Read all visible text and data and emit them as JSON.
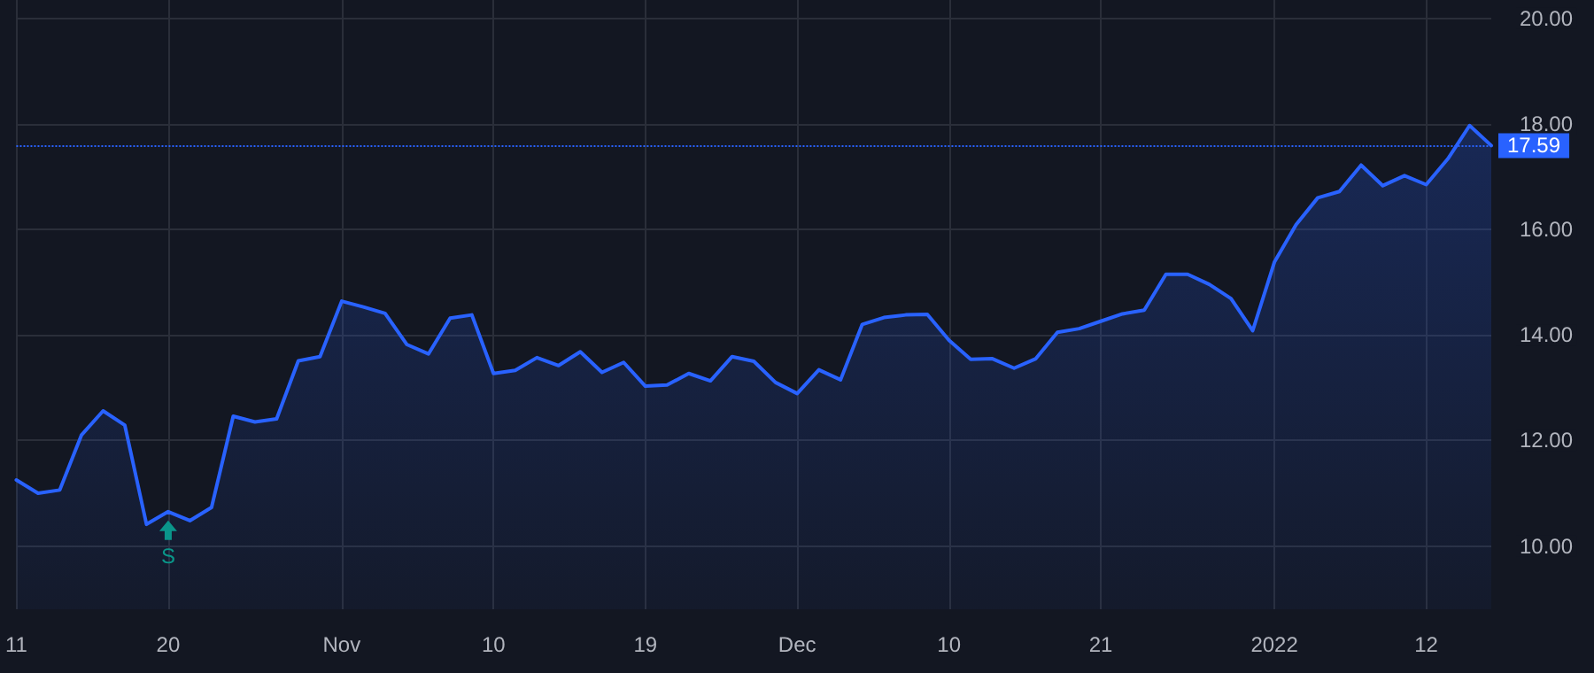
{
  "chart_data": {
    "type": "area",
    "categories": [
      "11",
      null,
      null,
      null,
      null,
      null,
      null,
      "20",
      null,
      null,
      null,
      null,
      null,
      null,
      null,
      "Nov",
      null,
      null,
      null,
      null,
      null,
      null,
      "10",
      null,
      null,
      null,
      null,
      null,
      null,
      "19",
      null,
      null,
      null,
      null,
      null,
      null,
      "Dec",
      null,
      null,
      null,
      null,
      null,
      null,
      "10",
      null,
      null,
      null,
      null,
      null,
      null,
      "21",
      null,
      null,
      null,
      null,
      null,
      null,
      null,
      "2022",
      null,
      null,
      null,
      null,
      null,
      null,
      "12",
      null,
      null,
      null
    ],
    "series": [
      {
        "color": "#2962ff",
        "values": [
          11.25,
          11.0,
          11.06,
          12.1,
          12.56,
          12.29,
          10.41,
          10.65,
          10.48,
          10.73,
          12.46,
          12.35,
          12.41,
          13.51,
          13.59,
          14.64,
          14.53,
          14.41,
          13.82,
          13.64,
          14.32,
          14.38,
          13.27,
          13.33,
          13.57,
          13.42,
          13.68,
          13.29,
          13.48,
          13.03,
          13.05,
          13.27,
          13.13,
          13.59,
          13.5,
          13.1,
          12.89,
          13.34,
          13.15,
          14.2,
          14.33,
          14.38,
          14.39,
          13.9,
          13.54,
          13.55,
          13.37,
          13.55,
          14.05,
          14.12,
          14.26,
          14.4,
          14.47,
          15.15,
          15.15,
          14.96,
          14.69,
          14.08,
          15.38,
          16.09,
          16.6,
          16.72,
          17.22,
          16.83,
          17.02,
          16.85,
          17.34,
          17.97,
          17.59
        ]
      }
    ],
    "ylim": [
      8.8,
      20.35
    ],
    "yticks": [
      {
        "value": 10,
        "label": "10.00"
      },
      {
        "value": 12,
        "label": "12.00"
      },
      {
        "value": 14,
        "label": "14.00"
      },
      {
        "value": 16,
        "label": "16.00"
      },
      {
        "value": 18,
        "label": "18.00"
      },
      {
        "value": 20,
        "label": "20.00"
      }
    ],
    "ref_lines": [
      {
        "axis": "y",
        "value": 17.59,
        "label": "17.59",
        "color": "#2962ff",
        "line_style": "dotted"
      }
    ],
    "annotations": [
      {
        "text": "S",
        "x": "20",
        "y": 10.65
      }
    ],
    "grid": true,
    "marker": "none",
    "line_style": "solid"
  }
}
